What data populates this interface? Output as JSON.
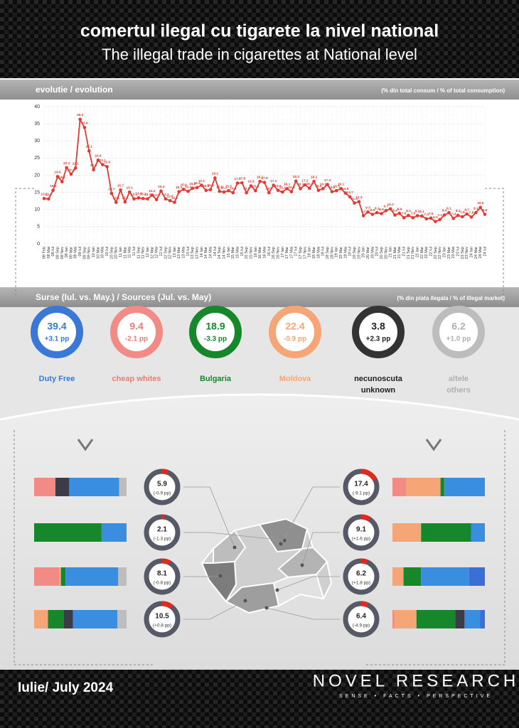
{
  "header": {
    "title": "comertul ilegal cu tigarete la nivel national",
    "subtitle": "The illegal trade in cigarettes at National level"
  },
  "chart_data": {
    "type": "line",
    "section": "evolutie / evolution",
    "note": "(% din total consum / % of total consumption)",
    "color": "#e03a32",
    "grid": true,
    "categories": [
      "08 Feb",
      "08 Mai",
      "08 Iul",
      "08 Sep",
      "08 Nov",
      "09 Ian",
      "09 Mar",
      "09 Mai",
      "09 Iul",
      "09 Sep",
      "09 Nov",
      "10 Ian",
      "10 Mar",
      "10 Mai",
      "10 Iul",
      "10 Sep",
      "10 Nov",
      "11 Ian",
      "11 Mar",
      "11 Mai",
      "11 Iul",
      "11 Sep",
      "11 Nov",
      "12 Ian",
      "12 Mar",
      "12 Mai",
      "12 Iul",
      "12 Sep",
      "12 Nov",
      "13 Ian",
      "13 Mar",
      "13 Mai",
      "13 Iul",
      "13 Sep",
      "13 Nov",
      "14 Ian",
      "14 Mar",
      "14 Mai",
      "14 Iul",
      "14 Sep",
      "14 Nov",
      "15 Ian",
      "15 Mar",
      "15 Mai",
      "15 Iul",
      "15 Sep",
      "15 Nov",
      "16 Ian",
      "16 Mar",
      "16 Mai",
      "16 Iul",
      "16 Sep",
      "16 Nov",
      "17 Ian",
      "17 Mar",
      "17 Mai",
      "17 Iul",
      "17 Sep",
      "17 Nov",
      "18 Ian",
      "18 Mar",
      "18 Mai",
      "18 Iul",
      "18 Sep",
      "18 Nov",
      "19 Ian",
      "19 Mar",
      "19 Mai",
      "19 Iul",
      "19 Sep",
      "19 Nov",
      "20 Ian",
      "20 Mar",
      "20 Mai",
      "20 Iul",
      "20 Sep",
      "20 Nov",
      "21 Ian",
      "21 Mar",
      "21 Mai",
      "21 Iul",
      "21 Sep",
      "21 Nov",
      "22 Ian",
      "22 Mar",
      "22 Mai",
      "22 Iul",
      "22 Sep",
      "22 Nov",
      "23 Ian",
      "23 Mar",
      "23 Mai",
      "23 Iul",
      "23 Sep",
      "23 Nov",
      "24 Ian",
      "24 Mar",
      "24 Mai",
      "24 Iul"
    ],
    "values": [
      13.2,
      13.1,
      15.6,
      19.6,
      18.1,
      22.2,
      20.3,
      22.1,
      36.3,
      33.9,
      27.1,
      21.6,
      24.4,
      23.1,
      22.5,
      14.7,
      12.1,
      15.7,
      12.2,
      15.1,
      13.1,
      13.4,
      13.2,
      13.1,
      14.2,
      12.9,
      15.4,
      13.1,
      12.6,
      12.1,
      15.2,
      15.9,
      15.3,
      16.2,
      16.4,
      17.1,
      15.6,
      15.8,
      19.2,
      15.3,
      15.1,
      15.5,
      14.9,
      17.7,
      17.8,
      14.9,
      16.9,
      15.5,
      18.2,
      17.9,
      14.9,
      17.1,
      15.6,
      15.1,
      16.1,
      15.2,
      18.3,
      16.1,
      17.2,
      16.2,
      18.2,
      15.6,
      16.1,
      17.3,
      15.2,
      15.5,
      16.1,
      14.8,
      13.7,
      11.9,
      12.3,
      8.2,
      9.3,
      8.6,
      9.1,
      8.8,
      9.7,
      10.2,
      8.4,
      8.9,
      7.6,
      8.3,
      7.6,
      8.2,
      8.1,
      7.3,
      7.5,
      6.5,
      7.1,
      8.4,
      9.1,
      7.4,
      8.3,
      7.9,
      8.7,
      7.8,
      9.1,
      10.6,
      8.6
    ],
    "ylim": [
      0,
      40
    ],
    "yticks": [
      0,
      5,
      10,
      15,
      20,
      25,
      30,
      35,
      40
    ]
  },
  "sources": {
    "section": "Surse (Iul. vs. May.) / Sources (Jul. vs. May)",
    "note": "(% din piata ilegala / % of illegal market)",
    "items": [
      {
        "value": 39.4,
        "change": "+3.1 pp",
        "name": [
          "Duty Free"
        ],
        "color": "#3a78d8",
        "text_color": "#3a78d8"
      },
      {
        "value": 9.4,
        "change": "-2.1 pp",
        "name": [
          "cheap whites"
        ],
        "color": "#f28a86",
        "text_color": "#f07a74"
      },
      {
        "value": 18.9,
        "change": "-3.3 pp",
        "name": [
          "Bulgaria"
        ],
        "color": "#17872b",
        "text_color": "#17872b"
      },
      {
        "value": 22.4,
        "change": "-0.9 pp",
        "name": [
          "Moldova"
        ],
        "color": "#f6a676",
        "text_color": "#f6a676"
      },
      {
        "value": 3.8,
        "change": "+2.3 pp",
        "name": [
          "necunoscuta",
          "unknown"
        ],
        "color": "#333333",
        "text_color": "#222222"
      },
      {
        "value": 6.2,
        "change": "+1.0 pp",
        "name": [
          "altele",
          "others"
        ],
        "color": "#bdbdbd",
        "text_color": "#b0b0b0"
      }
    ]
  },
  "regions": [
    {
      "value": 5.9,
      "change": "(-0.9 pp)",
      "shares": [
        23,
        15,
        54,
        8
      ],
      "colors": [
        "#f28a86",
        "#3c3c48",
        "#3a8ee0",
        "#bdbdbd"
      ]
    },
    {
      "value": 2.1,
      "change": "(-1.3 pp)",
      "shares": [
        73,
        27
      ],
      "colors": [
        "#17872b",
        "#3a8ee0"
      ]
    },
    {
      "value": 8.1,
      "change": "(-0.8 pp)",
      "shares": [
        27,
        2,
        5,
        57,
        9
      ],
      "colors": [
        "#f28a86",
        "#f6a676",
        "#17872b",
        "#3a8ee0",
        "#bdbdbd"
      ]
    },
    {
      "value": 10.5,
      "change": "(+0.8 pp)",
      "shares": [
        15,
        17,
        10,
        48,
        10
      ],
      "colors": [
        "#f6a676",
        "#17872b",
        "#3c3c48",
        "#3a8ee0",
        "#bdbdbd"
      ]
    },
    {
      "value": 17.4,
      "change": "(-9.1 pp)",
      "shares": [
        15,
        37,
        4,
        44
      ],
      "colors": [
        "#f28a86",
        "#f6a676",
        "#17872b",
        "#3a8ee0"
      ]
    },
    {
      "value": 9.1,
      "change": "(+1.6 pp)",
      "shares": [
        31,
        54,
        15
      ],
      "colors": [
        "#f6a676",
        "#17872b",
        "#3a8ee0"
      ]
    },
    {
      "value": 6.2,
      "change": "(+1.8 pp)",
      "shares": [
        12,
        19,
        52,
        17
      ],
      "colors": [
        "#f6a676",
        "#17872b",
        "#3a8ee0",
        "#3b6fd6"
      ]
    },
    {
      "value": 6.4,
      "change": "(-4.9 pp)",
      "shares": [
        2,
        24,
        42,
        10,
        17,
        5
      ],
      "colors": [
        "#f28a86",
        "#f6a676",
        "#17872b",
        "#3c3c48",
        "#3a8ee0",
        "#3b6fd6"
      ]
    }
  ],
  "footer": {
    "date": "Iulie/ July 2024",
    "brand": "NOVEL RESEARCH",
    "tagline": "SENSE • FACTS • PERSPECTIVE"
  }
}
